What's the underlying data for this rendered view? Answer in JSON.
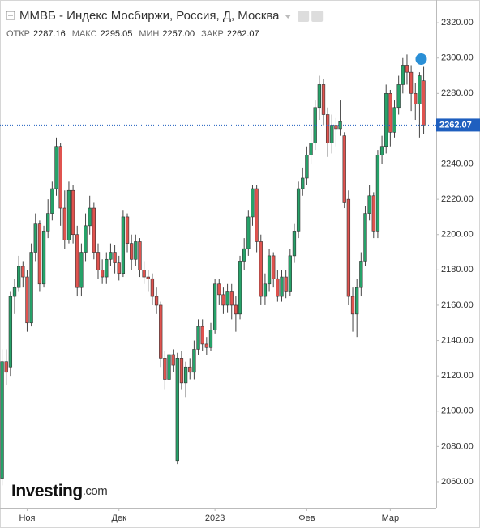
{
  "chart_data": {
    "type": "candlestick",
    "title": "ММВБ - Индекс Мосбиржи, Россия, Д, Москва",
    "ohlc_header": [
      {
        "label": "ОТКР",
        "text": "2287.16"
      },
      {
        "label": "МАКС",
        "text": "2295.05"
      },
      {
        "label": "МИН",
        "text": "2257.00"
      },
      {
        "label": "ЗАКР",
        "text": "2262.07"
      }
    ],
    "logo": "Investing",
    "logo_suffix": ".com",
    "up_color": "#26a269",
    "down_color": "#e0534f",
    "open": [
      2062,
      2128,
      2125,
      2165,
      2170,
      2182,
      2176,
      2150,
      2190,
      2206,
      2172,
      2202,
      2212,
      2226,
      2250,
      2215,
      2197,
      2225,
      2200,
      2170,
      2190,
      2205,
      2215,
      2190,
      2180,
      2176,
      2186,
      2190,
      2184,
      2178,
      2210,
      2195,
      2186,
      2196,
      2180,
      2176,
      2175,
      2165,
      2160,
      2130,
      2118,
      2132,
      2072,
      2130,
      2116,
      2125,
      2122,
      2135,
      2148,
      2138,
      2136,
      2146,
      2172,
      2166,
      2160,
      2168,
      2160,
      2155,
      2185,
      2192,
      2210,
      2226,
      2196,
      2165,
      2172,
      2188,
      2175,
      2165,
      2176,
      2168,
      2188,
      2202,
      2226,
      2232,
      2245,
      2252,
      2272,
      2285,
      2268,
      2252,
      2262,
      2260,
      2256,
      2220,
      2165,
      2155,
      2170,
      2185,
      2212,
      2222,
      2202,
      2245,
      2250,
      2280,
      2258,
      2272,
      2285,
      2296,
      2292,
      2280,
      2274,
      2287.16
    ],
    "high": [
      2135,
      2135,
      2168,
      2175,
      2188,
      2185,
      2180,
      2195,
      2212,
      2208,
      2205,
      2220,
      2230,
      2255,
      2252,
      2225,
      2230,
      2228,
      2205,
      2195,
      2212,
      2222,
      2218,
      2195,
      2186,
      2190,
      2195,
      2194,
      2188,
      2214,
      2212,
      2200,
      2200,
      2198,
      2185,
      2180,
      2178,
      2170,
      2162,
      2134,
      2136,
      2135,
      2133,
      2134,
      2128,
      2130,
      2140,
      2152,
      2152,
      2142,
      2150,
      2175,
      2175,
      2170,
      2172,
      2172,
      2165,
      2188,
      2198,
      2214,
      2228,
      2228,
      2200,
      2178,
      2192,
      2190,
      2180,
      2180,
      2180,
      2192,
      2206,
      2230,
      2238,
      2250,
      2260,
      2276,
      2290,
      2288,
      2272,
      2268,
      2266,
      2276,
      2258,
      2225,
      2170,
      2175,
      2190,
      2216,
      2228,
      2224,
      2248,
      2256,
      2285,
      2282,
      2276,
      2290,
      2300,
      2302,
      2296,
      2286,
      2292,
      2295.05
    ],
    "low": [
      2058,
      2115,
      2120,
      2155,
      2168,
      2170,
      2145,
      2148,
      2185,
      2168,
      2170,
      2198,
      2208,
      2222,
      2205,
      2192,
      2195,
      2195,
      2165,
      2165,
      2185,
      2200,
      2186,
      2175,
      2172,
      2172,
      2182,
      2178,
      2174,
      2176,
      2190,
      2180,
      2182,
      2176,
      2172,
      2168,
      2160,
      2155,
      2125,
      2112,
      2114,
      2122,
      2070,
      2112,
      2108,
      2118,
      2118,
      2132,
      2134,
      2132,
      2134,
      2144,
      2160,
      2155,
      2156,
      2152,
      2145,
      2152,
      2180,
      2188,
      2205,
      2190,
      2160,
      2160,
      2168,
      2170,
      2162,
      2162,
      2164,
      2165,
      2184,
      2198,
      2222,
      2228,
      2240,
      2248,
      2265,
      2262,
      2244,
      2246,
      2250,
      2256,
      2215,
      2160,
      2145,
      2142,
      2165,
      2182,
      2208,
      2198,
      2198,
      2240,
      2246,
      2250,
      2255,
      2268,
      2280,
      2285,
      2270,
      2265,
      2255,
      2257.0
    ],
    "close": [
      2128,
      2122,
      2165,
      2170,
      2182,
      2176,
      2150,
      2190,
      2206,
      2172,
      2202,
      2212,
      2226,
      2250,
      2215,
      2197,
      2225,
      2200,
      2170,
      2190,
      2205,
      2215,
      2190,
      2180,
      2176,
      2186,
      2190,
      2184,
      2178,
      2210,
      2195,
      2186,
      2196,
      2180,
      2176,
      2175,
      2165,
      2160,
      2130,
      2118,
      2132,
      2126,
      2130,
      2116,
      2125,
      2122,
      2135,
      2148,
      2138,
      2136,
      2146,
      2172,
      2166,
      2160,
      2168,
      2160,
      2155,
      2185,
      2192,
      2210,
      2226,
      2196,
      2165,
      2172,
      2188,
      2175,
      2165,
      2176,
      2168,
      2188,
      2202,
      2226,
      2232,
      2245,
      2252,
      2272,
      2285,
      2268,
      2252,
      2262,
      2260,
      2264,
      2218,
      2165,
      2155,
      2170,
      2185,
      2212,
      2222,
      2202,
      2245,
      2250,
      2280,
      2258,
      2272,
      2285,
      2296,
      2292,
      2280,
      2274,
      2290,
      2262.07
    ],
    "xlim": [
      -0.5,
      104
    ],
    "xticks": [
      {
        "value": 6,
        "label": "Ноя"
      },
      {
        "value": 28,
        "label": "Дек"
      },
      {
        "value": 51,
        "label": "2023"
      },
      {
        "value": 73,
        "label": "Фев"
      },
      {
        "value": 93,
        "label": "Мар"
      }
    ],
    "ylim": [
      2045.3,
      2332.9
    ],
    "yticks": [
      {
        "value": 2060,
        "label": "2060.00"
      },
      {
        "value": 2080,
        "label": "2080.00"
      },
      {
        "value": 2100,
        "label": "2100.00"
      },
      {
        "value": 2120,
        "label": "2120.00"
      },
      {
        "value": 2140,
        "label": "2140.00"
      },
      {
        "value": 2160,
        "label": "2160.00"
      },
      {
        "value": 2180,
        "label": "2180.00"
      },
      {
        "value": 2200,
        "label": "2200.00"
      },
      {
        "value": 2220,
        "label": "2220.00"
      },
      {
        "value": 2240,
        "label": "2240.00"
      },
      {
        "value": 2260,
        "label": "2260.00"
      },
      {
        "value": 2280,
        "label": "2280.00"
      },
      {
        "value": 2300,
        "label": "2300.00"
      },
      {
        "value": 2320,
        "label": "2320.00"
      }
    ],
    "grid": false
  }
}
